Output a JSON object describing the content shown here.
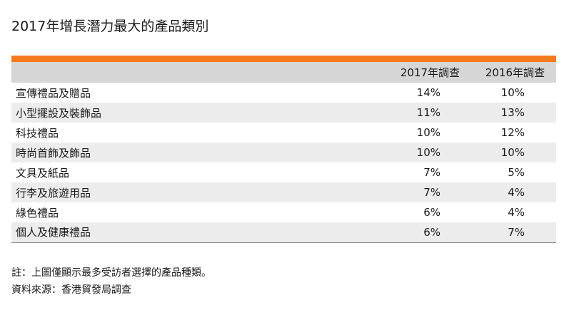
{
  "title": "2017年增長潛力最大的產品類別",
  "table": {
    "headers": [
      "",
      "2017年調查",
      "2016年調查"
    ],
    "rows": [
      {
        "label": "宣傳禮品及贈品",
        "y2017": "14%",
        "y2016": "10%"
      },
      {
        "label": "小型擺設及裝飾品",
        "y2017": "11%",
        "y2016": "13%"
      },
      {
        "label": "科技禮品",
        "y2017": "10%",
        "y2016": "12%"
      },
      {
        "label": "時尚首飾及飾品",
        "y2017": "10%",
        "y2016": "10%"
      },
      {
        "label": "文具及紙品",
        "y2017": "7%",
        "y2016": "5%"
      },
      {
        "label": "行李及旅遊用品",
        "y2017": "7%",
        "y2016": "4%"
      },
      {
        "label": "綠色禮品",
        "y2017": "6%",
        "y2016": "4%"
      },
      {
        "label": "個人及健康禮品",
        "y2017": "6%",
        "y2016": "7%"
      }
    ]
  },
  "notes": {
    "note": "註：上圖僅顯示最多受訪者選擇的產品種類。",
    "source": "資料來源：香港貿發局調查"
  },
  "colors": {
    "accent_bar": "#f47a20",
    "header_bg": "#d6d6d6",
    "stripe_bg": "#ececec"
  }
}
